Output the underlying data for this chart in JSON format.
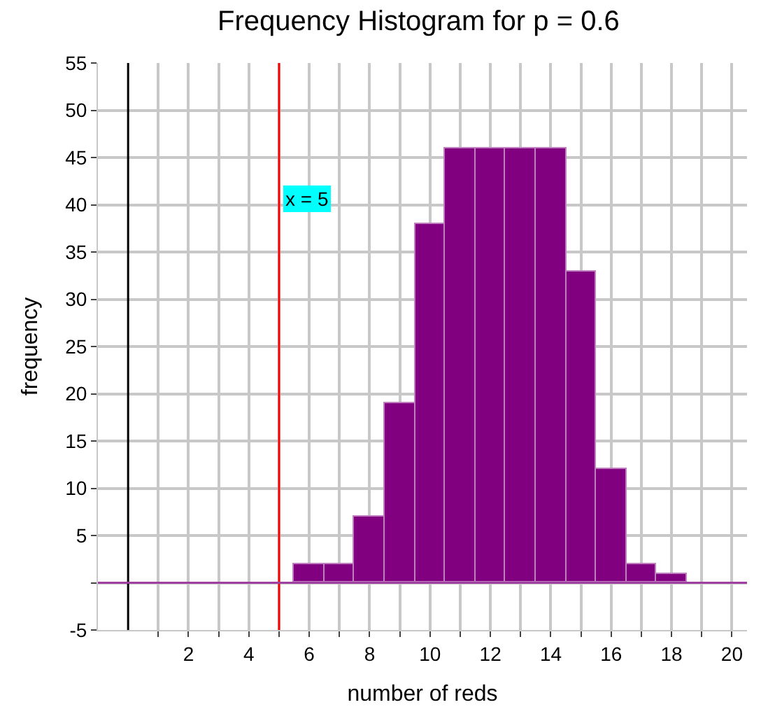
{
  "chart_data": {
    "type": "histogram",
    "title": "Frequency Histogram for p = 0.6",
    "xlabel": "number of reds",
    "ylabel": "frequency",
    "bins": [
      5.5,
      6.5,
      7.5,
      8.5,
      9.5,
      10.5,
      11.5,
      12.5,
      13.5,
      14.5,
      15.5,
      16.5,
      17.5,
      18.5
    ],
    "values": [
      2,
      2,
      7,
      19,
      38,
      46,
      46,
      46,
      46,
      33,
      12,
      2,
      1
    ],
    "color": "#800080",
    "xlim": [
      -1,
      20.5
    ],
    "xticks": [
      {
        "value": 1,
        "label": null
      },
      2,
      {
        "value": 3,
        "label": null
      },
      4,
      {
        "value": 5,
        "label": null
      },
      6,
      {
        "value": 7,
        "label": null
      },
      8,
      {
        "value": 9,
        "label": null
      },
      10,
      {
        "value": 11,
        "label": null
      },
      12,
      {
        "value": 13,
        "label": null
      },
      14,
      {
        "value": 15,
        "label": null
      },
      16,
      {
        "value": 17,
        "label": null
      },
      18,
      {
        "value": 19,
        "label": null
      },
      20
    ],
    "ylim": [
      -5,
      55
    ],
    "yticks": [
      -5,
      {
        "value": 0,
        "label": null
      },
      5,
      10,
      15,
      20,
      25,
      30,
      35,
      40,
      45,
      50,
      55
    ],
    "grid": true,
    "ref_lines": [
      {
        "axis": "x",
        "value": 5,
        "label": "x = 5",
        "color": "#ff0000"
      },
      {
        "axis": "x",
        "value": 0,
        "label": null,
        "color": "#000000"
      },
      {
        "axis": "y",
        "value": 0,
        "label": null,
        "color": "#a040a0"
      }
    ]
  }
}
